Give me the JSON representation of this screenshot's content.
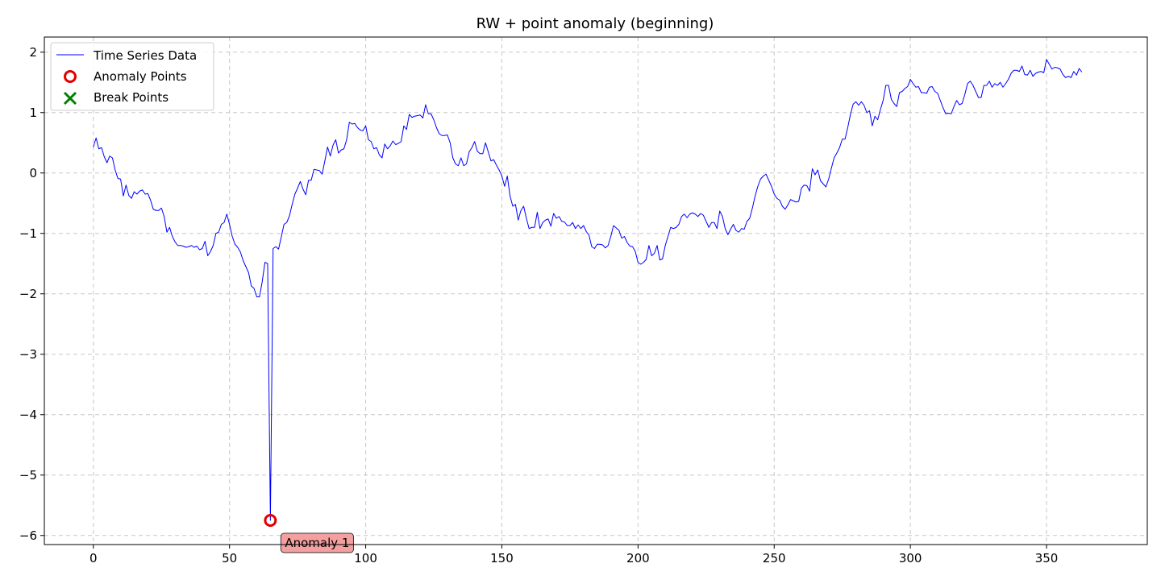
{
  "chart_data": {
    "type": "line",
    "title": "RW + point anomaly (beginning)",
    "xlabel": "",
    "ylabel": "",
    "xlim": [
      -18,
      387
    ],
    "ylim": [
      -6.15,
      2.25
    ],
    "xticks": [
      0,
      50,
      100,
      150,
      200,
      250,
      300,
      350
    ],
    "yticks": [
      -6,
      -5,
      -4,
      -3,
      -2,
      -1,
      0,
      1,
      2
    ],
    "grid": true,
    "legend_position": "top-left",
    "legend": [
      "Time Series Data",
      "Anomaly Points",
      "Break Points"
    ],
    "colors": {
      "line": "#0000ff",
      "anomaly": "#e00000",
      "break": "#008000",
      "annotation_bg": "#f4a0a0"
    },
    "series": [
      {
        "name": "Time Series Data",
        "x_start": 0,
        "values": [
          0.43,
          0.58,
          0.4,
          0.42,
          0.27,
          0.17,
          0.28,
          0.25,
          0.05,
          -0.09,
          -0.1,
          -0.38,
          -0.2,
          -0.37,
          -0.42,
          -0.31,
          -0.35,
          -0.3,
          -0.28,
          -0.35,
          -0.34,
          -0.45,
          -0.6,
          -0.62,
          -0.62,
          -0.58,
          -0.72,
          -0.98,
          -0.9,
          -1.05,
          -1.14,
          -1.2,
          -1.2,
          -1.21,
          -1.23,
          -1.22,
          -1.2,
          -1.23,
          -1.21,
          -1.27,
          -1.25,
          -1.13,
          -1.37,
          -1.3,
          -1.2,
          -1.0,
          -0.98,
          -0.85,
          -0.82,
          -0.68,
          -0.85,
          -1.05,
          -1.18,
          -1.23,
          -1.31,
          -1.45,
          -1.55,
          -1.65,
          -1.87,
          -1.91,
          -2.05,
          -2.05,
          -1.8,
          -1.48,
          -1.5,
          -5.75,
          -1.25,
          -1.22,
          -1.26,
          -1.06,
          -0.85,
          -0.82,
          -0.71,
          -0.52,
          -0.35,
          -0.25,
          -0.14,
          -0.27,
          -0.36,
          -0.12,
          -0.12,
          0.06,
          0.05,
          0.04,
          -0.02,
          0.2,
          0.43,
          0.28,
          0.46,
          0.55,
          0.33,
          0.38,
          0.4,
          0.55,
          0.84,
          0.81,
          0.82,
          0.75,
          0.71,
          0.7,
          0.78,
          0.55,
          0.52,
          0.4,
          0.42,
          0.3,
          0.25,
          0.48,
          0.4,
          0.45,
          0.53,
          0.47,
          0.49,
          0.52,
          0.78,
          0.72,
          0.97,
          0.92,
          0.94,
          0.95,
          0.96,
          0.91,
          1.13,
          0.98,
          0.98,
          0.88,
          0.75,
          0.65,
          0.62,
          0.62,
          0.63,
          0.5,
          0.25,
          0.15,
          0.12,
          0.25,
          0.12,
          0.15,
          0.35,
          0.42,
          0.52,
          0.36,
          0.32,
          0.32,
          0.5,
          0.35,
          0.2,
          0.22,
          0.13,
          0.05,
          -0.05,
          -0.22,
          -0.05,
          -0.38,
          -0.55,
          -0.52,
          -0.78,
          -0.62,
          -0.55,
          -0.75,
          -0.92,
          -0.9,
          -0.9,
          -0.65,
          -0.92,
          -0.82,
          -0.78,
          -0.76,
          -0.88,
          -0.67,
          -0.75,
          -0.72,
          -0.8,
          -0.81,
          -0.87,
          -0.87,
          -0.82,
          -0.92,
          -0.86,
          -0.92,
          -0.87,
          -0.97,
          -1.03,
          -1.22,
          -1.25,
          -1.18,
          -1.18,
          -1.19,
          -1.24,
          -1.2,
          -1.05,
          -0.87,
          -0.91,
          -0.95,
          -1.08,
          -1.05,
          -1.15,
          -1.21,
          -1.22,
          -1.3,
          -1.48,
          -1.51,
          -1.48,
          -1.43,
          -1.2,
          -1.37,
          -1.33,
          -1.2,
          -1.44,
          -1.42,
          -1.2,
          -1.05,
          -0.9,
          -0.92,
          -0.9,
          -0.85,
          -0.72,
          -0.68,
          -0.74,
          -0.68,
          -0.66,
          -0.68,
          -0.72,
          -0.67,
          -0.7,
          -0.8,
          -0.9,
          -0.82,
          -0.82,
          -0.92,
          -0.63,
          -0.72,
          -0.92,
          -1.02,
          -0.93,
          -0.85,
          -0.95,
          -0.98,
          -0.92,
          -0.93,
          -0.8,
          -0.75,
          -0.58,
          -0.38,
          -0.22,
          -0.1,
          -0.05,
          -0.02,
          -0.12,
          -0.22,
          -0.35,
          -0.42,
          -0.45,
          -0.55,
          -0.6,
          -0.53,
          -0.44,
          -0.46,
          -0.48,
          -0.47,
          -0.25,
          -0.2,
          -0.21,
          -0.3,
          0.07,
          -0.03,
          0.05,
          -0.13,
          -0.18,
          -0.23,
          -0.1,
          0.08,
          0.25,
          0.33,
          0.42,
          0.56,
          0.56,
          0.75,
          0.97,
          1.14,
          1.18,
          1.12,
          1.18,
          1.12,
          1.0,
          1.03,
          0.78,
          0.94,
          0.88,
          1.05,
          1.2,
          1.45,
          1.45,
          1.22,
          1.15,
          1.1,
          1.33,
          1.35,
          1.4,
          1.43,
          1.55,
          1.48,
          1.42,
          1.43,
          1.33,
          1.33,
          1.32,
          1.42,
          1.43,
          1.35,
          1.32,
          1.2,
          1.08,
          0.98,
          0.99,
          0.98,
          1.1,
          1.2,
          1.13,
          1.15,
          1.3,
          1.48,
          1.52,
          1.45,
          1.35,
          1.25,
          1.25,
          1.45,
          1.45,
          1.52,
          1.42,
          1.48,
          1.45,
          1.5,
          1.42,
          1.48,
          1.55,
          1.65,
          1.7,
          1.7,
          1.68,
          1.77,
          1.63,
          1.62,
          1.7,
          1.6,
          1.65,
          1.67,
          1.68,
          1.66,
          1.88,
          1.8,
          1.72,
          1.75,
          1.74,
          1.72,
          1.63,
          1.58,
          1.6,
          1.58,
          1.68,
          1.62,
          1.73,
          1.67
        ]
      }
    ],
    "anomaly_points": [
      {
        "x": 65,
        "y": -5.75
      }
    ],
    "break_points": [],
    "annotations": [
      {
        "text": "Anomaly 1",
        "x": 65,
        "y": -5.75
      }
    ]
  }
}
